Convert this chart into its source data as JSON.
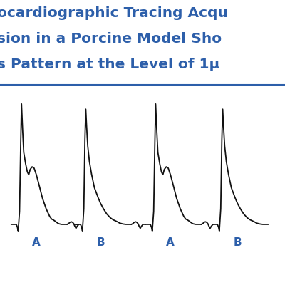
{
  "title_lines": [
    "ocardiographic Tracing Acqu",
    "sion in a Porcine Model Sho",
    "s Pattern at the Level of 1µ"
  ],
  "title_color": "#2D5FAA",
  "title_fontsize": 14.5,
  "label_fontsize": 11,
  "labels": [
    "A",
    "B",
    "A",
    "B"
  ],
  "label_color": "#2D5FAA",
  "line_color": "#111111",
  "background_color": "#ffffff",
  "separator_color": "#2D5FAA",
  "figsize": [
    4.0,
    4.0
  ],
  "dpi": 100
}
